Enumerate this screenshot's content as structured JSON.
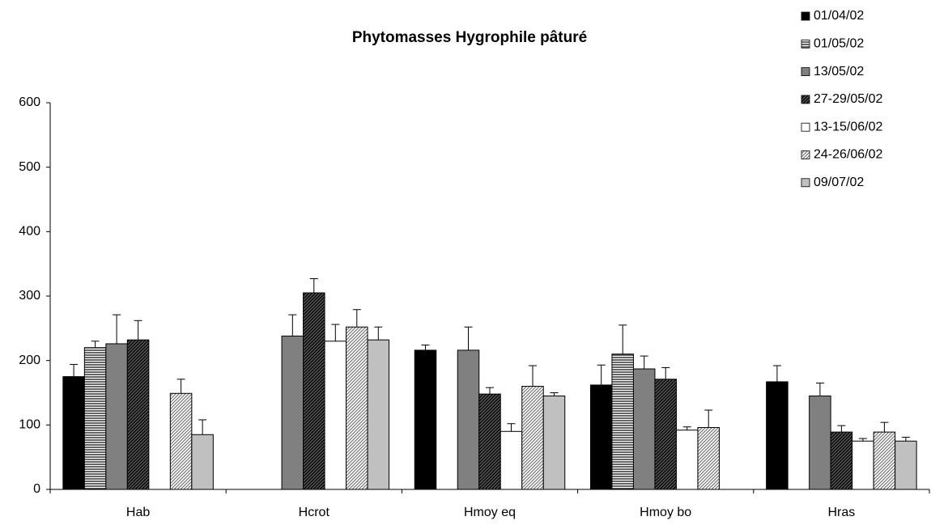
{
  "chart_data": {
    "type": "bar",
    "title": "Phytomasses Hygrophile pâturé",
    "categories": [
      "Hab",
      "Hcrot",
      "Hmoy eq",
      "Hmoy bo",
      "Hras"
    ],
    "ylim": [
      0,
      600
    ],
    "yticks": [
      0,
      100,
      200,
      300,
      400,
      500,
      600
    ],
    "legend": "top-right",
    "series": [
      {
        "name": "01/04/02",
        "color": "#000000",
        "pattern": "solid",
        "values": [
          175,
          0,
          216,
          162,
          167
        ],
        "errors": [
          19,
          0,
          8,
          31,
          25
        ]
      },
      {
        "name": "01/05/02",
        "color": "#9a9a9a",
        "pattern": "horizontal",
        "values": [
          220,
          0,
          0,
          210,
          0
        ],
        "errors": [
          10,
          0,
          0,
          45,
          0
        ]
      },
      {
        "name": "13/05/02",
        "color": "#808080",
        "pattern": "solid",
        "values": [
          226,
          238,
          216,
          187,
          145
        ],
        "errors": [
          45,
          33,
          36,
          20,
          20
        ]
      },
      {
        "name": "27-29/05/02",
        "color": "#333333",
        "pattern": "diagonal",
        "values": [
          232,
          305,
          148,
          171,
          89
        ],
        "errors": [
          30,
          22,
          10,
          18,
          10
        ]
      },
      {
        "name": "13-15/06/02",
        "color": "#ffffff",
        "pattern": "solid",
        "values": [
          0,
          230,
          90,
          92,
          75
        ],
        "errors": [
          0,
          26,
          12,
          5,
          4
        ]
      },
      {
        "name": "24-26/06/02",
        "color": "#a0a0a0",
        "pattern": "diagonal-light",
        "values": [
          149,
          252,
          160,
          96,
          89
        ],
        "errors": [
          22,
          27,
          32,
          27,
          15
        ]
      },
      {
        "name": "09/07/02",
        "color": "#c0c0c0",
        "pattern": "solid",
        "values": [
          85,
          232,
          145,
          0,
          75
        ],
        "errors": [
          23,
          20,
          5,
          0,
          6
        ]
      }
    ]
  }
}
